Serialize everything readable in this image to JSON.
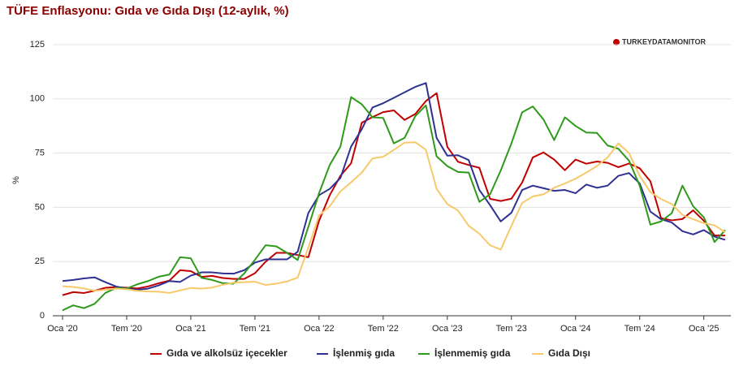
{
  "chart_data": {
    "type": "line",
    "title": "TÜFE Enflasyonu: Gıda ve Gıda Dışı (12-aylık, %)",
    "logo": "TURKEYDATAMONITOR",
    "ylabel": "%",
    "categories": [
      "Oca '20",
      null,
      null,
      null,
      null,
      null,
      "Tem '20",
      null,
      null,
      null,
      null,
      null,
      "Oca '21",
      null,
      null,
      null,
      null,
      null,
      "Tem '21",
      null,
      null,
      null,
      null,
      null,
      "Oca '22",
      null,
      null,
      null,
      null,
      null,
      "Tem '22",
      null,
      null,
      null,
      null,
      null,
      "Oca '23",
      null,
      null,
      null,
      null,
      null,
      "Tem '23",
      null,
      null,
      null,
      null,
      null,
      "Oca '24",
      null,
      null,
      null,
      null,
      null,
      "Tem '24",
      null,
      null,
      null,
      null,
      null,
      "Oca '25",
      null,
      null
    ],
    "ylim": [
      0,
      125
    ],
    "yticks": [
      0,
      25,
      50,
      75,
      100,
      125
    ],
    "grid": true,
    "legend": "bottom",
    "series": [
      {
        "name": "Gıda ve alkolsüz içecekler",
        "color": "#c00000",
        "values": [
          9.5,
          10.9,
          10.5,
          11.5,
          12.9,
          13.2,
          12.9,
          12.6,
          13.5,
          15,
          16.2,
          21,
          20.6,
          17.9,
          18.4,
          17.4,
          17,
          17,
          19.6,
          24.9,
          29,
          29,
          28,
          27,
          43.8,
          55.6,
          64.5,
          70.3,
          89,
          91.6,
          93.9,
          94.7,
          90.3,
          93,
          99,
          102.6,
          77.9,
          71,
          69.5,
          68.2,
          53.9,
          52.9,
          54,
          61.4,
          73,
          75.3,
          72,
          67.1,
          72,
          70.1,
          71.1,
          70.5,
          68.5,
          70.2,
          68,
          62,
          45,
          44,
          44.6,
          48.6,
          43.8,
          37,
          37
        ]
      },
      {
        "name": "İşlenmiş gıda",
        "color": "#2e3192",
        "values": [
          16,
          16.5,
          17.2,
          17.7,
          15.5,
          13.5,
          12.5,
          12,
          12.5,
          14,
          16,
          15.6,
          18.5,
          20,
          20,
          19.5,
          19.4,
          21,
          24.5,
          26,
          26,
          26,
          29.5,
          47.4,
          55.6,
          58.5,
          63.5,
          78,
          86,
          96,
          98,
          100.5,
          103,
          105.5,
          107.3,
          82,
          73.8,
          74,
          71.8,
          58,
          51,
          43.5,
          47.5,
          58,
          60,
          58.8,
          57.6,
          58,
          56.5,
          60.5,
          59,
          60,
          64.5,
          65.8,
          61,
          48,
          44.5,
          43,
          39,
          37.5,
          39.5,
          36.5,
          35
        ]
      },
      {
        "name": "İşlenmemiş gıda",
        "color": "#2e9a1a",
        "values": [
          2.5,
          4.8,
          3.5,
          5.5,
          10.5,
          12.8,
          12.5,
          14.5,
          16,
          18,
          19,
          27,
          26.5,
          17.5,
          16.5,
          15,
          14.8,
          19.5,
          25.8,
          32.5,
          32,
          29,
          25.7,
          41,
          56.5,
          69.5,
          78,
          100.8,
          97.5,
          91.5,
          91.2,
          79.5,
          82,
          92,
          97,
          73.5,
          69,
          66.3,
          66,
          52.5,
          56,
          67,
          79.5,
          93.8,
          96.5,
          90.5,
          81,
          91.5,
          87.5,
          84.5,
          84.3,
          78.5,
          77,
          71.5,
          60,
          42,
          43.5,
          47.3,
          60,
          50.5,
          45.4,
          34,
          39.5
        ]
      },
      {
        "name": "Gıda Dışı",
        "color": "#f7c96b",
        "values": [
          13.6,
          13.3,
          12.6,
          11.5,
          12,
          12.5,
          12.2,
          11.5,
          11.2,
          11.1,
          10.5,
          11.7,
          12.8,
          12.5,
          13,
          14.3,
          15.2,
          15.5,
          15.7,
          14.2,
          14.8,
          15.8,
          17.6,
          31.5,
          46.2,
          50.5,
          57.3,
          61.5,
          66,
          72.5,
          73.3,
          76.5,
          79.8,
          80,
          76.5,
          58.5,
          51.5,
          48.5,
          41.5,
          37.8,
          32.5,
          30.5,
          41.5,
          52,
          55,
          56,
          59,
          61,
          63.2,
          66,
          69,
          73,
          79.5,
          75,
          64.5,
          57,
          53.8,
          51.5,
          46.5,
          44.5,
          42.7,
          41.7,
          38.5
        ]
      }
    ]
  }
}
